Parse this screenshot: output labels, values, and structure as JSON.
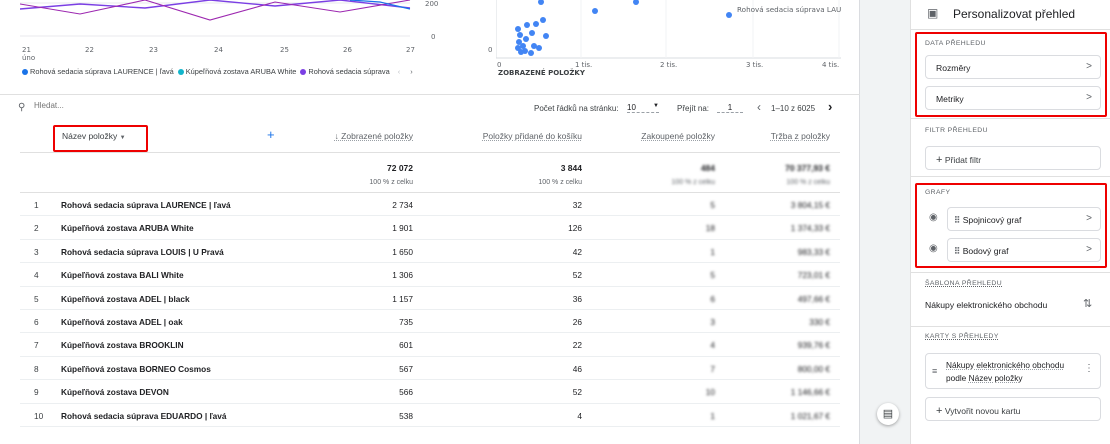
{
  "line_chart": {
    "y_ticks": [
      "200",
      "0"
    ],
    "x_ticks": [
      "21",
      "22",
      "23",
      "24",
      "25",
      "26",
      "27"
    ],
    "x_month": "úno",
    "legend": [
      {
        "label": "Rohová sedacia súprava LAURENCE | ľavá",
        "color": "#1a73e8"
      },
      {
        "label": "Kúpeľňová zostava ARUBA White",
        "color": "#12b5cb"
      },
      {
        "label": "Rohová sedacia súprava",
        "color": "#7b3fe4"
      }
    ],
    "legend_prev": "‹",
    "legend_next": "›"
  },
  "scatter_chart": {
    "annotation": "Rohová sedacia súprava LAU",
    "y_tick": "0",
    "x_ticks": [
      "0",
      "1 tis.",
      "2 tis.",
      "3 tis.",
      "4 tis."
    ],
    "x_label": "ZOBRAZENÉ POLOŽKY",
    "point_color": "#4285f4"
  },
  "toolbar": {
    "search_placeholder": "Hledat...",
    "rows_per_page_label": "Počet řádků na stránku:",
    "rows_per_page_value": "10",
    "goto_label": "Přejít na:",
    "goto_value": "1",
    "pagination": "1–10 z 6025",
    "prev": "‹",
    "next": "›"
  },
  "table": {
    "dimension_header": "Název položky",
    "add_icon": "+",
    "columns": [
      "↓ Zobrazené položky",
      "Položky přidané do košíku",
      "Zakoupené položky",
      "Tržba z položky"
    ],
    "totals": [
      "72 072",
      "3 844",
      "484",
      "70 377,93 €"
    ],
    "totals_pct": [
      "100 % z celku",
      "100 % z celku",
      "100 % z celku",
      "100 % z celku"
    ],
    "rows": [
      {
        "n": "1",
        "name": "Rohová sedacia súprava LAURENCE | ľavá",
        "views": "2 734",
        "cart": "32",
        "bought": "5",
        "revenue": "3 804,15 €"
      },
      {
        "n": "2",
        "name": "Kúpeľňová zostava ARUBA White",
        "views": "1 901",
        "cart": "126",
        "bought": "18",
        "revenue": "1 374,33 €"
      },
      {
        "n": "3",
        "name": "Rohová sedacia súprava LOUIS | U Pravá",
        "views": "1 650",
        "cart": "42",
        "bought": "1",
        "revenue": "983,33 €"
      },
      {
        "n": "4",
        "name": "Kúpeľňová zostava BALI White",
        "views": "1 306",
        "cart": "52",
        "bought": "5",
        "revenue": "723,01 €"
      },
      {
        "n": "5",
        "name": "Kúpeľňová zostava ADEL | black",
        "views": "1 157",
        "cart": "36",
        "bought": "6",
        "revenue": "497,66 €"
      },
      {
        "n": "6",
        "name": "Kúpeľňová zostava ADEL | oak",
        "views": "735",
        "cart": "26",
        "bought": "3",
        "revenue": "330 €"
      },
      {
        "n": "7",
        "name": "Kúpeľňová zostava BROOKLIN",
        "views": "601",
        "cart": "22",
        "bought": "4",
        "revenue": "939,76 €"
      },
      {
        "n": "8",
        "name": "Kúpeľňová zostava BORNEO Cosmos",
        "views": "567",
        "cart": "46",
        "bought": "7",
        "revenue": "800,00 €"
      },
      {
        "n": "9",
        "name": "Kúpeľňová zostava DEVON",
        "views": "566",
        "cart": "52",
        "bought": "10",
        "revenue": "1 146,66 €"
      },
      {
        "n": "10",
        "name": "Rohová sedacia súprava EDUARDO | ľavá",
        "views": "538",
        "cart": "4",
        "bought": "1",
        "revenue": "1 021,67 €"
      }
    ]
  },
  "panel": {
    "title": "Personalizovat přehled",
    "data_section": "DATA PŘEHLEDU",
    "dimensions": "Rozměry",
    "metrics": "Metriky",
    "filter_section": "FILTR PŘEHLEDU",
    "add_filter": "Přidat filtr",
    "charts_section": "GRAFY",
    "line_chart": "Spojnicový graf",
    "scatter_chart": "Bodový graf",
    "template_section": "ŠABLONA PŘEHLEDU",
    "template_name": "Nákupy elektronického obchodu",
    "cards_section": "KARTY S PŘEHLEDY",
    "card_line1": "Nákupy elektronického obchodu",
    "card_line2_prefix": "podle",
    "card_line2_link": "Název položky",
    "create_card": "Vytvořit novou kartu"
  },
  "colors": {
    "accent": "#1a73e8",
    "highlight": "#e00000"
  }
}
